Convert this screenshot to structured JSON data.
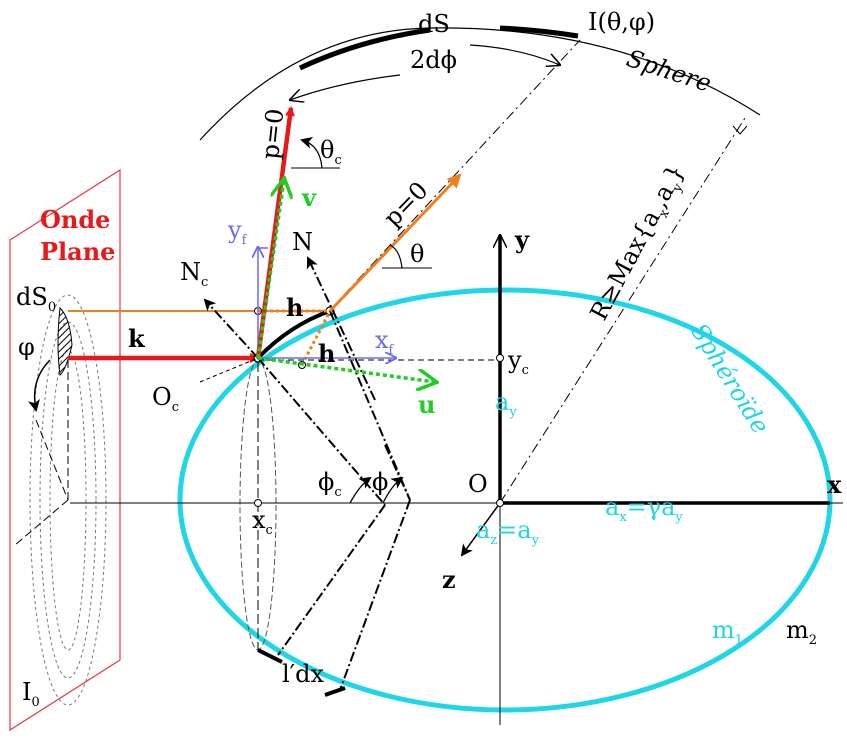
{
  "colors": {
    "plane": "#e83a3a",
    "red_vector": "#e8191a",
    "orange": "#f0801e",
    "green": "#22cc22",
    "blue": "#6a6af0",
    "cyan": "#1fd5e6",
    "black": "#000000"
  },
  "labels": {
    "dS": "dS",
    "two_dphi": "2dϕ",
    "intensity": "I(θ,φ)",
    "sphere": "Sphere",
    "radius": "R≥Max{a",
    "radius_sub_x": "x",
    "radius_comma": ",a",
    "radius_sub_y": "y",
    "radius_close": "}",
    "plane_line1": "Onde",
    "plane_line2": "Plane",
    "dS0": "dS",
    "dS0_sub": "0",
    "phi_plane": "φ",
    "k": "k",
    "I0": "I",
    "I0_sub": "0",
    "Nc": "N",
    "Nc_sub": "c",
    "N": "N",
    "Oc": "O",
    "Oc_sub": "c",
    "yf": "y",
    "yf_sub": "f",
    "xf": "x",
    "xf_sub": "f",
    "h_top": "h",
    "h_mid": "h",
    "v": "v",
    "u": "u",
    "p0_left": "p=0",
    "p0_right": "p=0",
    "theta_c": "θ",
    "theta_c_sub": "c",
    "theta": "θ",
    "y_axis": "y",
    "x_axis": "x",
    "z_axis": "z",
    "yc": "y",
    "yc_sub": "c",
    "xc": "x",
    "xc_sub": "c",
    "O": "O",
    "phi_c": "ϕ",
    "phi_c_sub": "c",
    "phi": "ϕ",
    "ay": "a",
    "ay_sub": "y",
    "ax_eq": "a",
    "ax_eq_sub": "x",
    "ax_eq_rest": "=γa",
    "ax_eq_sub2": "y",
    "az_eq": "a",
    "az_eq_sub": "z",
    "az_eq_rest": "=a",
    "az_eq_sub2": "y",
    "spheroide": "Sphéroïde",
    "m1": "m",
    "m1_sub": "1",
    "m2": "m",
    "m2_sub": "2",
    "ldx": "l′dx"
  }
}
